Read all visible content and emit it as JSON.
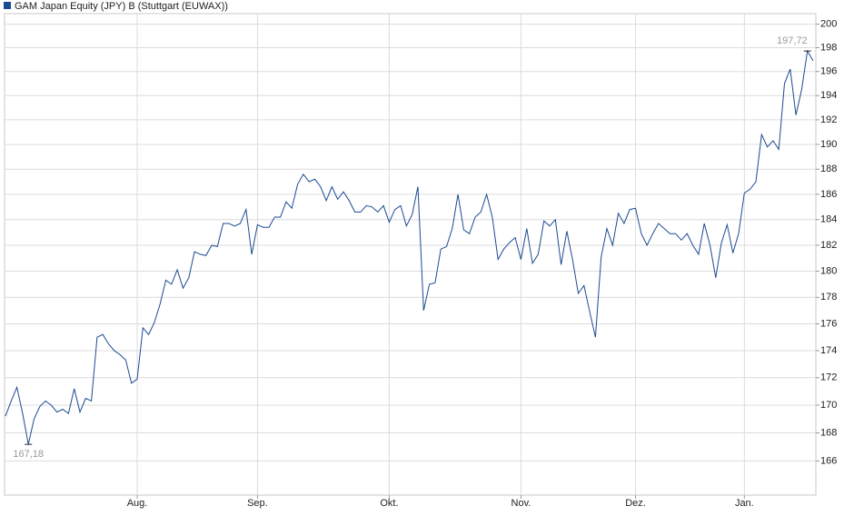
{
  "chart_data": {
    "type": "line",
    "log_scale": true,
    "grid": true,
    "series": [
      {
        "name": "GAM Japan Equity (JPY) B (Stuttgart (EUWAX))",
        "color": "#1c4a92",
        "values": [
          169.2,
          170.3,
          171.3,
          169.4,
          167.18,
          169.0,
          169.9,
          170.3,
          170.0,
          169.5,
          169.7,
          169.4,
          171.2,
          169.5,
          170.5,
          170.3,
          175.0,
          175.2,
          174.5,
          174.0,
          173.7,
          173.3,
          171.6,
          171.9,
          175.7,
          175.2,
          176.1,
          177.5,
          179.3,
          179.0,
          180.1,
          178.7,
          179.5,
          181.5,
          181.3,
          181.2,
          182.0,
          181.9,
          183.7,
          183.7,
          183.5,
          183.7,
          184.8,
          181.3,
          183.6,
          183.4,
          183.4,
          184.2,
          184.2,
          185.4,
          184.9,
          186.8,
          187.6,
          187.0,
          187.2,
          186.6,
          185.5,
          186.6,
          185.6,
          186.2,
          185.5,
          184.6,
          184.6,
          185.1,
          185.0,
          184.6,
          185.1,
          183.8,
          184.8,
          185.1,
          183.5,
          184.4,
          186.6,
          177.0,
          179.0,
          179.1,
          181.7,
          181.9,
          183.3,
          186.0,
          183.2,
          182.9,
          184.2,
          184.6,
          186.0,
          184.2,
          180.9,
          181.7,
          182.2,
          182.6,
          180.9,
          183.3,
          180.6,
          181.3,
          183.9,
          183.5,
          184.0,
          180.5,
          183.1,
          180.9,
          178.3,
          178.9,
          176.9,
          175.0,
          181.1,
          183.3,
          182.0,
          184.5,
          183.7,
          184.8,
          184.9,
          182.9,
          182.0,
          182.9,
          183.7,
          183.3,
          182.9,
          182.9,
          182.4,
          182.9,
          182.0,
          181.3,
          183.7,
          182.0,
          179.5,
          182.2,
          183.6,
          181.4,
          182.9,
          186.1,
          186.4,
          187.0,
          190.8,
          189.8,
          190.3,
          189.6,
          195.0,
          196.2,
          192.4,
          194.5,
          197.72,
          196.9
        ]
      }
    ],
    "categories": [
      null,
      null,
      null,
      null,
      null,
      null,
      null,
      null,
      null,
      null,
      null,
      null,
      null,
      null,
      null,
      null,
      null,
      null,
      null,
      null,
      null,
      null,
      null,
      "Aug.",
      null,
      null,
      null,
      null,
      null,
      null,
      null,
      null,
      null,
      null,
      null,
      null,
      null,
      null,
      null,
      null,
      null,
      null,
      null,
      null,
      "Sep.",
      null,
      null,
      null,
      null,
      null,
      null,
      null,
      null,
      null,
      null,
      null,
      null,
      null,
      null,
      null,
      null,
      null,
      null,
      null,
      null,
      null,
      null,
      "Okt.",
      null,
      null,
      null,
      null,
      null,
      null,
      null,
      null,
      null,
      null,
      null,
      null,
      null,
      null,
      null,
      null,
      null,
      null,
      null,
      null,
      null,
      null,
      "Nov.",
      null,
      null,
      null,
      null,
      null,
      null,
      null,
      null,
      null,
      null,
      null,
      null,
      null,
      null,
      null,
      null,
      null,
      null,
      null,
      "Dez.",
      null,
      null,
      null,
      null,
      null,
      null,
      null,
      null,
      null,
      null,
      null,
      null,
      null,
      null,
      null,
      null,
      null,
      null,
      "Jan.",
      null,
      null,
      null,
      null,
      null,
      null,
      null,
      null,
      null,
      null,
      null,
      null
    ],
    "annotations": [
      {
        "text": "167,18",
        "value": 167.18
      },
      {
        "text": "197,72",
        "value": 197.72
      }
    ],
    "ylim": [
      163.6,
      200.9
    ],
    "yticks": [
      166,
      168,
      170,
      172,
      174,
      176,
      178,
      180,
      182,
      184,
      186,
      188,
      190,
      192,
      194,
      196,
      198,
      200
    ]
  }
}
